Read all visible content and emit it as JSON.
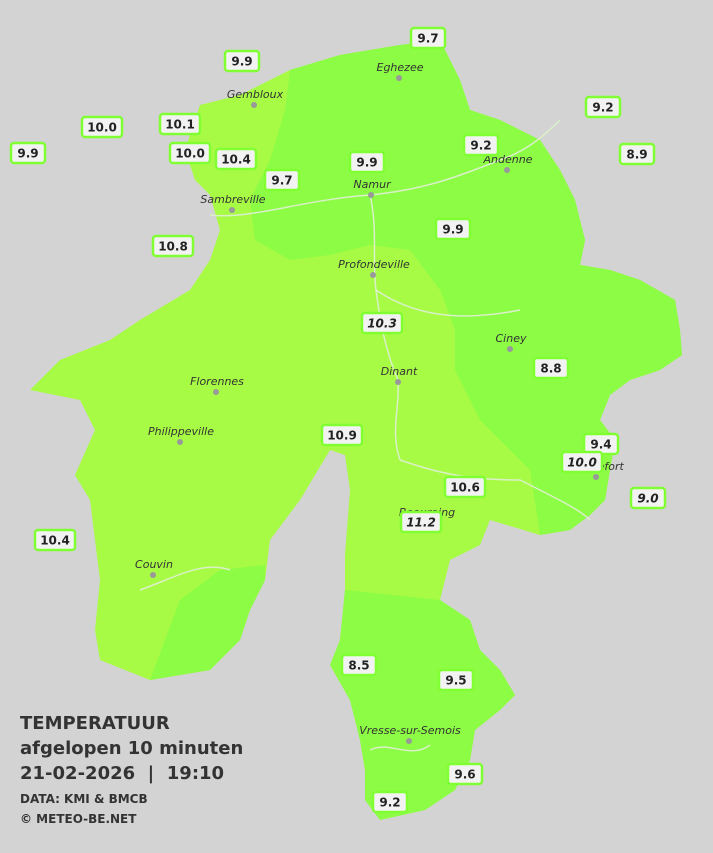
{
  "legend": {
    "title": "TEMPERATUUR",
    "subtitle": "afgelopen 10 minuten",
    "datetime": "21-02-2026  |  19:10",
    "source": "DATA: KMI & BMCB",
    "copyright": "© METEO-BE.NET"
  },
  "cities": [
    "Gembloux",
    "Eghezee",
    "Andenne",
    "Namur",
    "Sambreville",
    "Profondeville",
    "Ciney",
    "Dinant",
    "Florennes",
    "Philippeville",
    "Couvin",
    "Beauraing",
    "Rochefort",
    "Vresse-sur-Semois"
  ],
  "stations": [
    {
      "value": "9.7"
    },
    {
      "value": "9.9"
    },
    {
      "value": "9.2"
    },
    {
      "value": "10.0"
    },
    {
      "value": "10.1"
    },
    {
      "value": "9.9"
    },
    {
      "value": "10.0"
    },
    {
      "value": "10.4"
    },
    {
      "value": "9.2"
    },
    {
      "value": "8.9"
    },
    {
      "value": "9.9"
    },
    {
      "value": "9.7"
    },
    {
      "value": "9.9"
    },
    {
      "value": "10.8"
    },
    {
      "value": "10.3",
      "italic": true
    },
    {
      "value": "8.8"
    },
    {
      "value": "10.9"
    },
    {
      "value": "9.4"
    },
    {
      "value": "10.0",
      "italic": true
    },
    {
      "value": "10.6"
    },
    {
      "value": "9.0",
      "italic": true
    },
    {
      "value": "11.2",
      "italic": true
    },
    {
      "value": "10.4"
    },
    {
      "value": "8.5"
    },
    {
      "value": "9.5"
    },
    {
      "value": "9.6"
    },
    {
      "value": "9.2"
    }
  ]
}
